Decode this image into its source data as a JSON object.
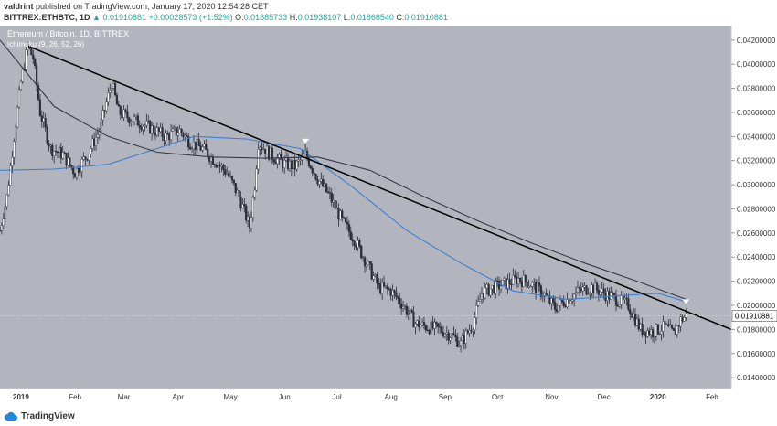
{
  "header": {
    "author": "valdrint",
    "published_text": "published on TradingView.com, January 17, 2020 12:54:28 CET",
    "symbol_line": "BITTREX:ETHBTC, 1D",
    "last": "0.01910881",
    "change": "+0.00028573 (+1.52%)",
    "ohlc": {
      "o_label": "O:",
      "o": "0.01885733",
      "h_label": "H:",
      "h": "0.01938107",
      "l_label": "L:",
      "l": "0.01868540",
      "c_label": "C:",
      "c": "0.01910881"
    }
  },
  "legend": {
    "title": "Ethereum / Bitcoin, 1D, BITTREX",
    "indicator": "Ichimoku (9, 26, 52, 26)"
  },
  "footer": {
    "brand": "TradingView"
  },
  "colors": {
    "background": "#b2b5be",
    "candle": "#2a2e39",
    "ma_blue": "#3d7fd1",
    "ma_dark": "#363a45",
    "trendline": "#000000",
    "price_label_bg": "#ffffff"
  },
  "chart_data": {
    "type": "candlestick",
    "title": "Ethereum / Bitcoin, 1D, BITTREX",
    "ylim": [
      0.0131,
      0.0432
    ],
    "y_ticks": [
      "0.04200000",
      "0.04000000",
      "0.03800000",
      "0.03600000",
      "0.03400000",
      "0.03200000",
      "0.03000000",
      "0.02800000",
      "0.02600000",
      "0.02400000",
      "0.02200000",
      "0.02000000",
      "0.01800000",
      "0.01600000",
      "0.01400000"
    ],
    "x_ticks": [
      "2019",
      "Feb",
      "Mar",
      "Apr",
      "May",
      "Jun",
      "Jul",
      "Aug",
      "Sep",
      "Oct",
      "Nov",
      "Dec",
      "2020",
      "Feb"
    ],
    "x_start": "2018-12-20",
    "x_end": "2020-02-12",
    "current_price_label": "0.01910881",
    "current_price": 0.01910881,
    "close_series": [
      [
        "2018-12-20",
        0.0262
      ],
      [
        "2018-12-24",
        0.029
      ],
      [
        "2018-12-28",
        0.034
      ],
      [
        "2019-01-01",
        0.0385
      ],
      [
        "2019-01-05",
        0.0415
      ],
      [
        "2019-01-08",
        0.0405
      ],
      [
        "2019-01-12",
        0.036
      ],
      [
        "2019-01-18",
        0.033
      ],
      [
        "2019-01-25",
        0.0325
      ],
      [
        "2019-02-01",
        0.031
      ],
      [
        "2019-02-08",
        0.0325
      ],
      [
        "2019-02-15",
        0.0345
      ],
      [
        "2019-02-22",
        0.0385
      ],
      [
        "2019-02-26",
        0.036
      ],
      [
        "2019-03-05",
        0.0355
      ],
      [
        "2019-03-15",
        0.0348
      ],
      [
        "2019-03-25",
        0.034
      ],
      [
        "2019-04-02",
        0.0345
      ],
      [
        "2019-04-08",
        0.0335
      ],
      [
        "2019-04-15",
        0.033
      ],
      [
        "2019-04-22",
        0.032
      ],
      [
        "2019-04-29",
        0.031
      ],
      [
        "2019-05-06",
        0.029
      ],
      [
        "2019-05-12",
        0.0265
      ],
      [
        "2019-05-15",
        0.03
      ],
      [
        "2019-05-17",
        0.0335
      ],
      [
        "2019-05-24",
        0.0325
      ],
      [
        "2019-05-31",
        0.0318
      ],
      [
        "2019-06-07",
        0.0315
      ],
      [
        "2019-06-13",
        0.0325
      ],
      [
        "2019-06-20",
        0.0305
      ],
      [
        "2019-06-27",
        0.029
      ],
      [
        "2019-07-04",
        0.027
      ],
      [
        "2019-07-11",
        0.0255
      ],
      [
        "2019-07-18",
        0.0235
      ],
      [
        "2019-07-25",
        0.0215
      ],
      [
        "2019-08-01",
        0.0212
      ],
      [
        "2019-08-08",
        0.02
      ],
      [
        "2019-08-15",
        0.0185
      ],
      [
        "2019-08-22",
        0.0182
      ],
      [
        "2019-08-29",
        0.018
      ],
      [
        "2019-09-05",
        0.0175
      ],
      [
        "2019-09-10",
        0.0168
      ],
      [
        "2019-09-17",
        0.0185
      ],
      [
        "2019-09-22",
        0.021
      ],
      [
        "2019-09-29",
        0.0215
      ],
      [
        "2019-10-06",
        0.0218
      ],
      [
        "2019-10-13",
        0.0222
      ],
      [
        "2019-10-20",
        0.0218
      ],
      [
        "2019-10-27",
        0.021
      ],
      [
        "2019-11-03",
        0.0198
      ],
      [
        "2019-11-10",
        0.0205
      ],
      [
        "2019-11-17",
        0.0212
      ],
      [
        "2019-11-24",
        0.0215
      ],
      [
        "2019-12-01",
        0.021
      ],
      [
        "2019-12-08",
        0.0205
      ],
      [
        "2019-12-15",
        0.02
      ],
      [
        "2019-12-22",
        0.018
      ],
      [
        "2019-12-29",
        0.0178
      ],
      [
        "2020-01-05",
        0.0182
      ],
      [
        "2020-01-10",
        0.0176
      ],
      [
        "2020-01-14",
        0.0188
      ],
      [
        "2020-01-17",
        0.0191
      ]
    ],
    "series": [
      {
        "values": [
          [
            "2018-12-20",
            0.0312
          ],
          [
            "2019-01-20",
            0.0313
          ],
          [
            "2019-02-20",
            0.0317
          ],
          [
            "2019-03-20",
            0.033
          ],
          [
            "2019-04-10",
            0.034
          ],
          [
            "2019-05-10",
            0.0338
          ],
          [
            "2019-06-10",
            0.033
          ],
          [
            "2019-07-10",
            0.0298
          ],
          [
            "2019-08-10",
            0.0262
          ],
          [
            "2019-09-10",
            0.0235
          ],
          [
            "2019-10-10",
            0.0212
          ],
          [
            "2019-11-10",
            0.0205
          ],
          [
            "2019-12-10",
            0.0208
          ],
          [
            "2020-01-01",
            0.021
          ],
          [
            "2020-01-17",
            0.0203
          ]
        ]
      },
      {
        "values": [
          [
            "2018-12-20",
            0.042
          ],
          [
            "2019-01-20",
            0.0365
          ],
          [
            "2019-02-20",
            0.034
          ],
          [
            "2019-03-20",
            0.0327
          ],
          [
            "2019-04-20",
            0.0323
          ],
          [
            "2019-05-20",
            0.0322
          ],
          [
            "2019-06-20",
            0.0323
          ],
          [
            "2019-07-20",
            0.0312
          ],
          [
            "2019-08-20",
            0.029
          ],
          [
            "2019-09-20",
            0.027
          ],
          [
            "2019-10-20",
            0.0252
          ],
          [
            "2019-11-20",
            0.0235
          ],
          [
            "2019-12-20",
            0.022
          ],
          [
            "2020-01-17",
            0.0205
          ]
        ]
      }
    ],
    "trendline": [
      [
        "2019-01-05",
        0.0415
      ],
      [
        "2020-02-12",
        0.018
      ]
    ],
    "markers": [
      [
        "2019-06-13",
        0.0335
      ],
      [
        "2020-01-17",
        0.0202
      ]
    ]
  }
}
